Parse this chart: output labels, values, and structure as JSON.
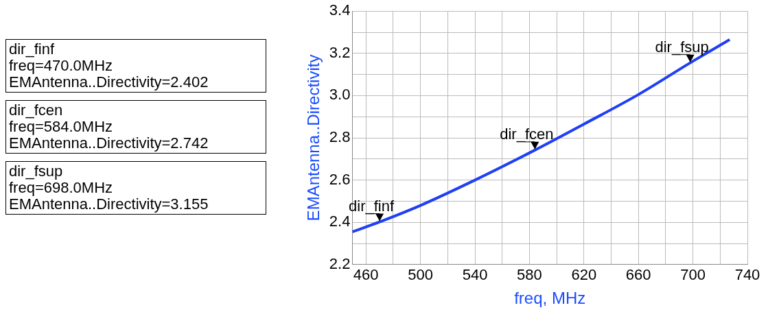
{
  "chart_data": {
    "type": "line",
    "xlabel": "freq, MHz",
    "ylabel": "EMAntenna..Directivity",
    "x": [
      450,
      470,
      500,
      540,
      584,
      620,
      660,
      698,
      727
    ],
    "series": [
      {
        "color": "#1f3ff5",
        "values": [
          2.355,
          2.402,
          2.48,
          2.6,
          2.742,
          2.865,
          3.005,
          3.155,
          3.265
        ]
      }
    ],
    "xlim": [
      450,
      740
    ],
    "xticks": [
      460,
      {
        "value": 480,
        "label": null
      },
      500,
      {
        "value": 520,
        "label": null
      },
      540,
      {
        "value": 560,
        "label": null
      },
      580,
      {
        "value": 600,
        "label": null
      },
      620,
      {
        "value": 640,
        "label": null
      },
      660,
      {
        "value": 680,
        "label": null
      },
      700,
      {
        "value": 720,
        "label": null
      },
      740
    ],
    "ylim": [
      2.2,
      3.4
    ],
    "yticks": [
      2.2,
      {
        "value": 2.3,
        "label": null
      },
      2.4,
      {
        "value": 2.5,
        "label": null
      },
      2.6,
      {
        "value": 2.7,
        "label": null
      },
      2.8,
      {
        "value": 2.9,
        "label": null
      },
      {
        "value": 3,
        "label": "3.0"
      },
      {
        "value": 3.1,
        "label": null
      },
      3.2,
      {
        "value": 3.3,
        "label": null
      },
      3.4
    ],
    "grid": true,
    "legend": false,
    "marker": "none",
    "line_style": "solid",
    "annotations": [
      {
        "text": "dir_finf",
        "x": 470,
        "y": 2.402
      },
      {
        "text": "dir_fcen",
        "x": 584,
        "y": 2.742
      },
      {
        "text": "dir_fsup",
        "x": 698,
        "y": 3.155
      },
      "dir_finf\nfreq=470.0MHz\nEMAntenna..Directivity=2.402",
      "dir_fcen\nfreq=584.0MHz\nEMAntenna..Directivity=2.742",
      "dir_fsup\nfreq=698.0MHz\nEMAntenna..Directivity=3.155"
    ]
  }
}
